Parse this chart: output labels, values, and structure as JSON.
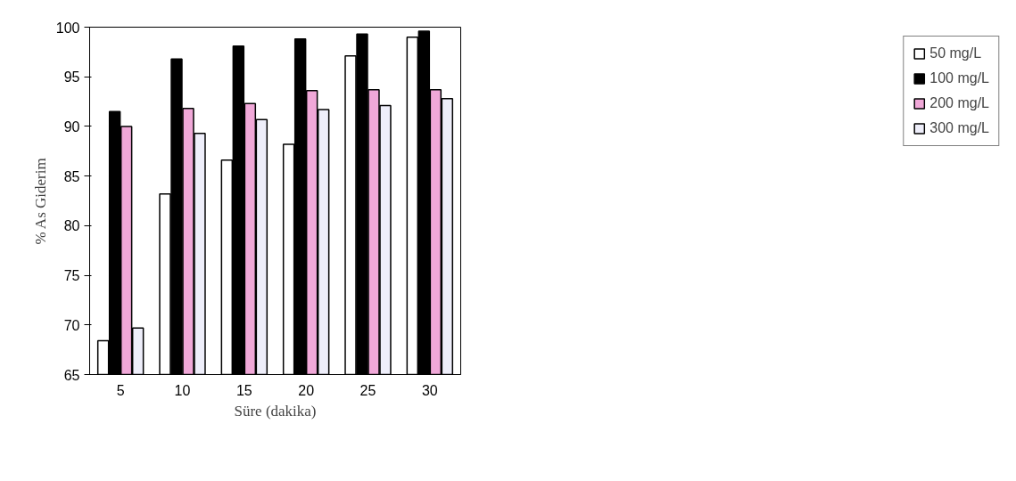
{
  "chart_data": {
    "type": "bar",
    "xlabel": "Süre (dakika)",
    "ylabel": "% As Giderim",
    "categories": [
      "5",
      "10",
      "15",
      "20",
      "25",
      "30"
    ],
    "series": [
      {
        "name": "50 mg/L",
        "color": "#ffffff",
        "values": [
          68.4,
          83.2,
          86.6,
          88.2,
          97.1,
          99.0
        ]
      },
      {
        "name": "100 mg/L",
        "color": "#000000",
        "values": [
          91.5,
          96.8,
          98.1,
          98.8,
          99.3,
          99.6
        ]
      },
      {
        "name": "200 mg/L",
        "color": "#f0a8d8",
        "values": [
          90.0,
          91.8,
          92.3,
          93.6,
          93.7,
          93.7
        ]
      },
      {
        "name": "300 mg/L",
        "color": "#eeeefa",
        "values": [
          69.7,
          89.3,
          90.7,
          91.7,
          92.1,
          92.8
        ]
      }
    ],
    "ylim": [
      65,
      100
    ],
    "yticks": [
      65,
      70,
      75,
      80,
      85,
      90,
      95,
      100
    ],
    "grid": false,
    "legend": "right"
  }
}
